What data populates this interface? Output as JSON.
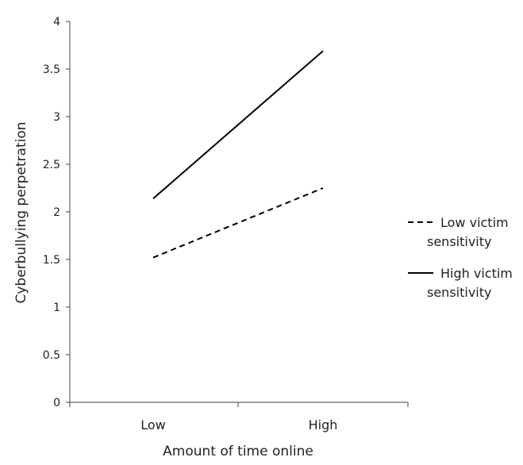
{
  "chart_data": {
    "type": "line",
    "title": "",
    "xlabel": "Amount of time online",
    "ylabel": "Cyberbullying perpetration",
    "categories": [
      "Low",
      "High"
    ],
    "ylim": [
      0,
      4
    ],
    "yticks": [
      0,
      0.5,
      1,
      1.5,
      2,
      2.5,
      3,
      3.5,
      4
    ],
    "ytick_labels": [
      "0",
      "0.5",
      "1",
      "1.5",
      "2",
      "2.5",
      "3",
      "3.5",
      "4"
    ],
    "grid": false,
    "legend_position": "right",
    "series": [
      {
        "name": "Low victim sensitivity",
        "legend_lines": [
          "Low victim",
          "sensitivity"
        ],
        "style": "dashed",
        "color": "#000000",
        "values": [
          1.52,
          2.25
        ]
      },
      {
        "name": "High victim sensitivity",
        "legend_lines": [
          "High victim",
          "sensitivity"
        ],
        "style": "solid",
        "color": "#000000",
        "values": [
          2.14,
          3.69
        ]
      }
    ]
  }
}
